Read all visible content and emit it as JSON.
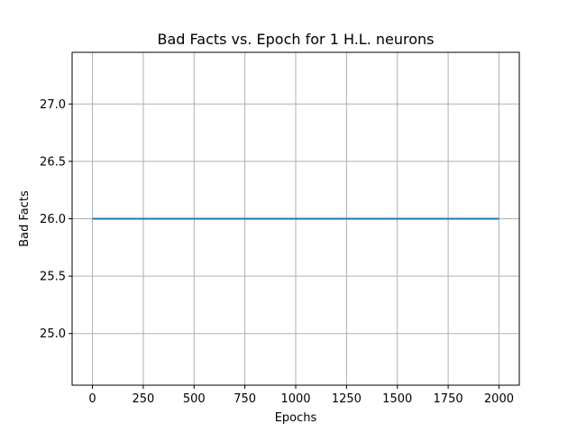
{
  "chart_data": {
    "type": "line",
    "title": "Bad Facts vs. Epoch for 1 H.L. neurons",
    "xlabel": "Epochs",
    "ylabel": "Bad Facts",
    "xlim": [
      -100,
      2100
    ],
    "ylim": [
      24.55,
      27.45
    ],
    "xticks": [
      0,
      250,
      500,
      750,
      1000,
      1250,
      1500,
      1750,
      2000
    ],
    "yticks": [
      25.0,
      25.5,
      26.0,
      26.5,
      27.0
    ],
    "ytick_labels": [
      "25.0",
      "25.5",
      "26.0",
      "26.5",
      "27.0"
    ],
    "grid": true,
    "series": [
      {
        "color": "#1f77b4",
        "x": [
          0,
          2000
        ],
        "y": [
          26.0,
          26.0
        ]
      }
    ]
  }
}
